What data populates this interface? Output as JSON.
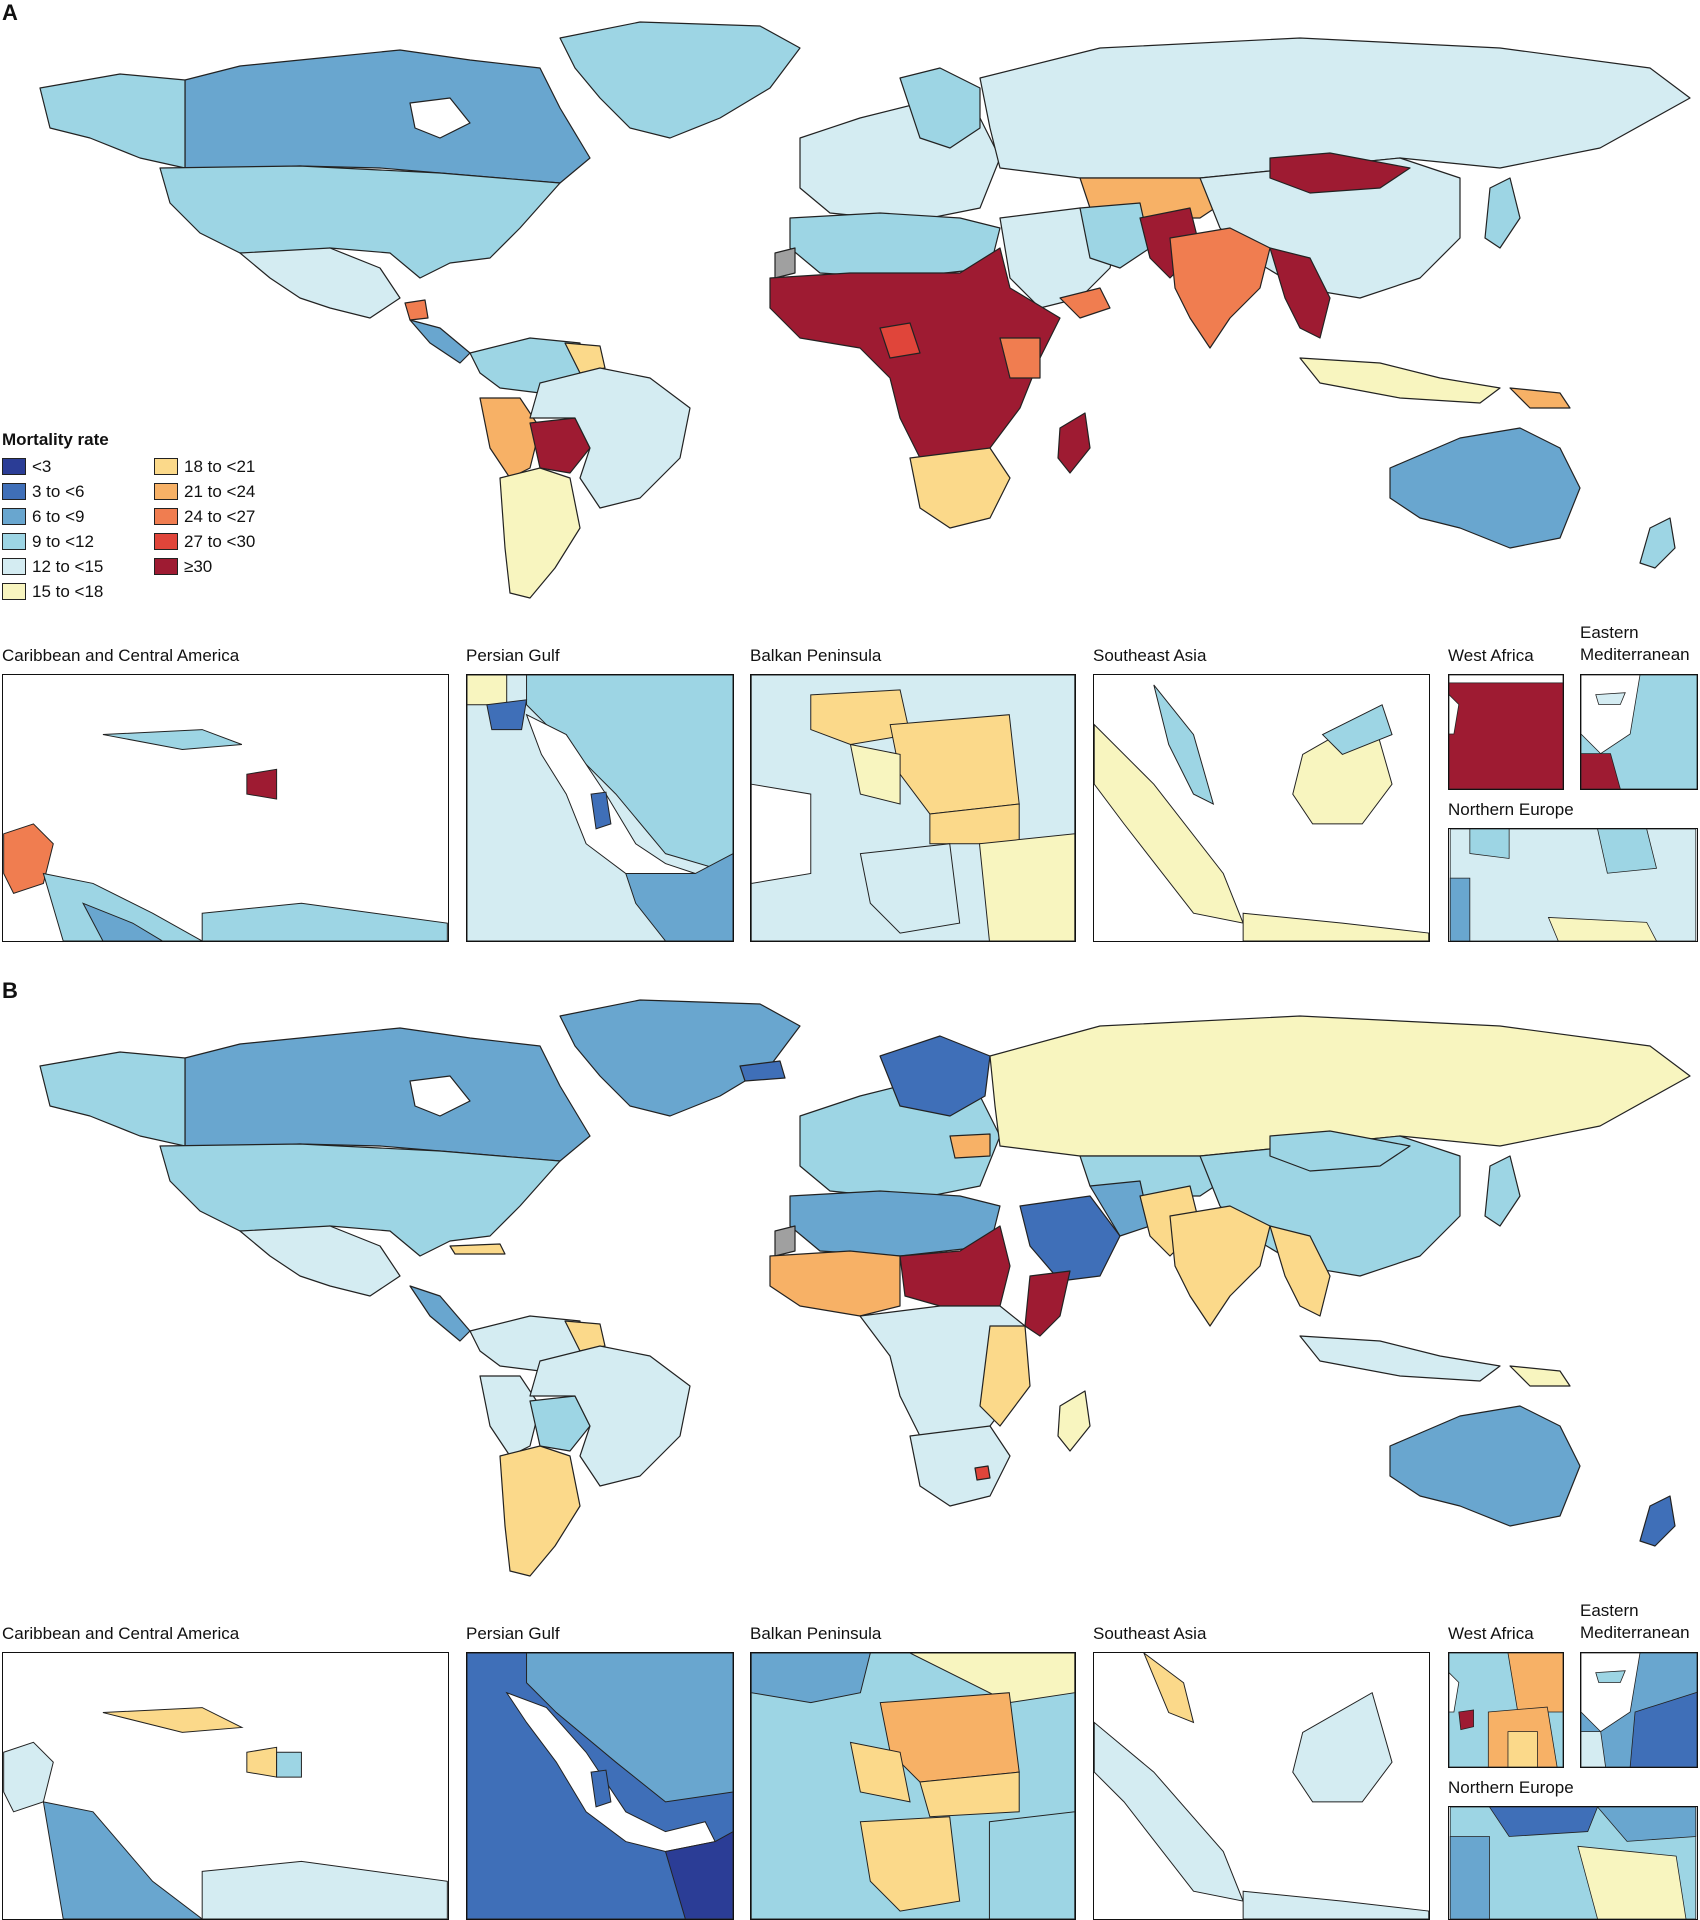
{
  "panels": [
    {
      "label": "A",
      "insets": [
        {
          "title": "Caribbean and Central America"
        },
        {
          "title": "Persian Gulf"
        },
        {
          "title": "Balkan Peninsula"
        },
        {
          "title": "Southeast Asia"
        },
        {
          "title": "West Africa"
        },
        {
          "title": "Eastern Mediterranean"
        },
        {
          "title": "Northern Europe"
        }
      ]
    },
    {
      "label": "B",
      "insets": [
        {
          "title": "Caribbean and Central America"
        },
        {
          "title": "Persian Gulf"
        },
        {
          "title": "Balkan Peninsula"
        },
        {
          "title": "Southeast Asia"
        },
        {
          "title": "West Africa"
        },
        {
          "title": "Eastern Mediterranean"
        },
        {
          "title": "Northern Europe"
        }
      ]
    }
  ],
  "legend": {
    "title": "Mortality rate",
    "items": [
      {
        "label": "<3",
        "color": "#2b3d96"
      },
      {
        "label": "3 to <6",
        "color": "#3f6fb8"
      },
      {
        "label": "6 to <9",
        "color": "#69a6cf"
      },
      {
        "label": "9 to <12",
        "color": "#9dd5e4"
      },
      {
        "label": "12 to <15",
        "color": "#d4ecf2"
      },
      {
        "label": "15 to <18",
        "color": "#f8f5bf"
      },
      {
        "label": "18 to <21",
        "color": "#fbd98a"
      },
      {
        "label": "21 to <24",
        "color": "#f7b166"
      },
      {
        "label": "24 to <27",
        "color": "#f07d50"
      },
      {
        "label": "27 to <30",
        "color": "#e0453a"
      },
      {
        "label": "≥30",
        "color": "#9e1b32"
      }
    ]
  },
  "colors": {
    "border": "#222222",
    "no_data": "#a0a0a0"
  }
}
